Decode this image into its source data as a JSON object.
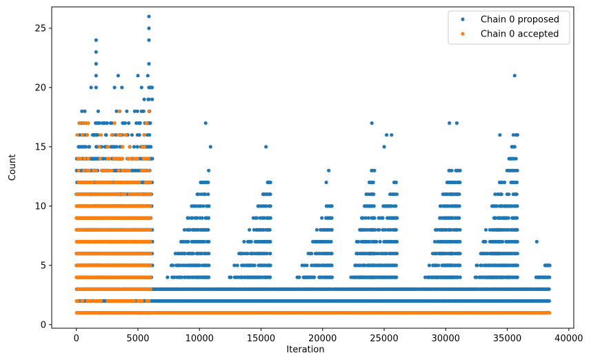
{
  "chart_data": {
    "type": "scatter",
    "title": "",
    "xlabel": "Iteration",
    "ylabel": "Count",
    "xlim": [
      -2000,
      40400
    ],
    "ylim": [
      -0.3,
      26.8
    ],
    "xticks": [
      0,
      5000,
      10000,
      15000,
      20000,
      25000,
      30000,
      35000,
      40000
    ],
    "xtick_labels": [
      "0",
      "5000",
      "10000",
      "15000",
      "20000",
      "25000",
      "30000",
      "35000",
      "40000"
    ],
    "yticks": [
      0,
      5,
      10,
      15,
      20,
      25
    ],
    "ytick_labels": [
      "0",
      "5",
      "10",
      "15",
      "20",
      "25"
    ],
    "legend_position": "top-right",
    "series": [
      {
        "name": "Chain 0 proposed",
        "color": "#1f77b4",
        "marker": "dot",
        "bands": [
          {
            "y": 1,
            "x": [
              0,
              6000
            ],
            "density": 0.5
          },
          {
            "y": 2,
            "x": [
              0,
              38400
            ],
            "density": 1.0
          },
          {
            "y": 3,
            "x": [
              0,
              38400
            ],
            "density": 0.95
          },
          {
            "y": 4,
            "x": [
              0,
              6000
            ],
            "density": 0.95
          },
          {
            "y": 5,
            "x": [
              0,
              6000
            ],
            "density": 0.95
          },
          {
            "y": 6,
            "x": [
              0,
              6000
            ],
            "density": 0.95
          },
          {
            "y": 7,
            "x": [
              0,
              6000
            ],
            "density": 0.95
          },
          {
            "y": 8,
            "x": [
              0,
              6000
            ],
            "density": 0.95
          },
          {
            "y": 9,
            "x": [
              0,
              6000
            ],
            "density": 0.95
          },
          {
            "y": 10,
            "x": [
              0,
              6000
            ],
            "density": 0.95
          },
          {
            "y": 11,
            "x": [
              0,
              6000
            ],
            "density": 0.9
          },
          {
            "y": 12,
            "x": [
              0,
              6000
            ],
            "density": 0.8
          },
          {
            "y": 13,
            "x": [
              0,
              6000
            ],
            "density": 0.6
          },
          {
            "y": 14,
            "x": [
              0,
              6000
            ],
            "density": 0.45
          },
          {
            "y": 15,
            "x": [
              0,
              6000
            ],
            "density": 0.3
          },
          {
            "y": 16,
            "x": [
              0,
              6000
            ],
            "density": 0.2
          },
          {
            "y": 17,
            "x": [
              0,
              6000
            ],
            "density": 0.12
          },
          {
            "y": 18,
            "x": [
              0,
              6000
            ],
            "density": 0.08
          },
          {
            "y": 19,
            "x": [
              0,
              6000
            ],
            "density": 0.05
          }
        ],
        "bursts": [
          {
            "center": 1600,
            "start": 0,
            "peak": 24
          },
          {
            "center": 3500,
            "start": 2000,
            "peak": 21
          },
          {
            "center": 5900,
            "start": 4000,
            "peak": 26
          },
          {
            "center": 10500,
            "start": 7000,
            "peak": 17
          },
          {
            "center": 15500,
            "start": 12000,
            "peak": 15
          },
          {
            "center": 20500,
            "start": 17500,
            "peak": 13
          },
          {
            "center": 24000,
            "start": 22000,
            "peak": 17
          },
          {
            "center": 25800,
            "start": 22500,
            "peak": 16
          },
          {
            "center": 30300,
            "start": 28000,
            "peak": 17
          },
          {
            "center": 30900,
            "start": 28500,
            "peak": 17
          },
          {
            "center": 34400,
            "start": 32000,
            "peak": 16
          },
          {
            "center": 35600,
            "start": 33000,
            "peak": 21
          },
          {
            "center": 38200,
            "start": 36500,
            "peak": 6
          }
        ],
        "outliers": [
          {
            "x": 1600,
            "y": 24
          },
          {
            "x": 1600,
            "y": 23
          },
          {
            "x": 1600,
            "y": 22
          },
          {
            "x": 1600,
            "y": 21
          },
          {
            "x": 1600,
            "y": 20
          },
          {
            "x": 1200,
            "y": 20
          },
          {
            "x": 3400,
            "y": 21
          },
          {
            "x": 3100,
            "y": 20
          },
          {
            "x": 3700,
            "y": 20
          },
          {
            "x": 5000,
            "y": 21
          },
          {
            "x": 5300,
            "y": 20
          },
          {
            "x": 5900,
            "y": 26
          },
          {
            "x": 5900,
            "y": 25
          },
          {
            "x": 5900,
            "y": 24
          },
          {
            "x": 5900,
            "y": 22
          },
          {
            "x": 5800,
            "y": 21
          },
          {
            "x": 5900,
            "y": 20
          },
          {
            "x": 10500,
            "y": 17
          },
          {
            "x": 10900,
            "y": 15
          },
          {
            "x": 15400,
            "y": 15
          },
          {
            "x": 20500,
            "y": 13
          },
          {
            "x": 20300,
            "y": 12
          },
          {
            "x": 24000,
            "y": 17
          },
          {
            "x": 25200,
            "y": 16
          },
          {
            "x": 25600,
            "y": 16
          },
          {
            "x": 25000,
            "y": 15
          },
          {
            "x": 30300,
            "y": 17
          },
          {
            "x": 30900,
            "y": 17
          },
          {
            "x": 34400,
            "y": 16
          },
          {
            "x": 35600,
            "y": 21
          },
          {
            "x": 35500,
            "y": 16
          },
          {
            "x": 35600,
            "y": 15
          },
          {
            "x": 37400,
            "y": 7
          }
        ]
      },
      {
        "name": "Chain 0 accepted",
        "color": "#ff7f0e",
        "marker": "dot",
        "bands": [
          {
            "y": 1,
            "x": [
              0,
              38400
            ],
            "density": 1.0
          },
          {
            "y": 2,
            "x": [
              0,
              6000
            ],
            "density": 0.4
          },
          {
            "y": 3,
            "x": [
              0,
              6000
            ],
            "density": 0.95
          },
          {
            "y": 4,
            "x": [
              0,
              6000
            ],
            "density": 1.0
          },
          {
            "y": 5,
            "x": [
              0,
              6000
            ],
            "density": 1.0
          },
          {
            "y": 6,
            "x": [
              0,
              6000
            ],
            "density": 1.0
          },
          {
            "y": 7,
            "x": [
              0,
              6000
            ],
            "density": 1.0
          },
          {
            "y": 8,
            "x": [
              0,
              6000
            ],
            "density": 1.0
          },
          {
            "y": 9,
            "x": [
              0,
              6000
            ],
            "density": 1.0
          },
          {
            "y": 10,
            "x": [
              0,
              6000
            ],
            "density": 0.85
          },
          {
            "y": 11,
            "x": [
              0,
              6000
            ],
            "density": 0.6
          },
          {
            "y": 12,
            "x": [
              0,
              6000
            ],
            "density": 0.45
          },
          {
            "y": 13,
            "x": [
              0,
              6000
            ],
            "density": 0.3
          },
          {
            "y": 14,
            "x": [
              0,
              6000
            ],
            "density": 0.2
          },
          {
            "y": 15,
            "x": [
              0,
              6000
            ],
            "density": 0.12
          },
          {
            "y": 16,
            "x": [
              0,
              6000
            ],
            "density": 0.06
          },
          {
            "y": 17,
            "x": [
              0,
              6000
            ],
            "density": 0.03
          }
        ],
        "outliers": [
          {
            "x": 800,
            "y": 17
          },
          {
            "x": 3100,
            "y": 17
          },
          {
            "x": 3500,
            "y": 18
          },
          {
            "x": 5900,
            "y": 18
          },
          {
            "x": 5500,
            "y": 16
          },
          {
            "x": 500,
            "y": 16
          }
        ]
      }
    ]
  }
}
